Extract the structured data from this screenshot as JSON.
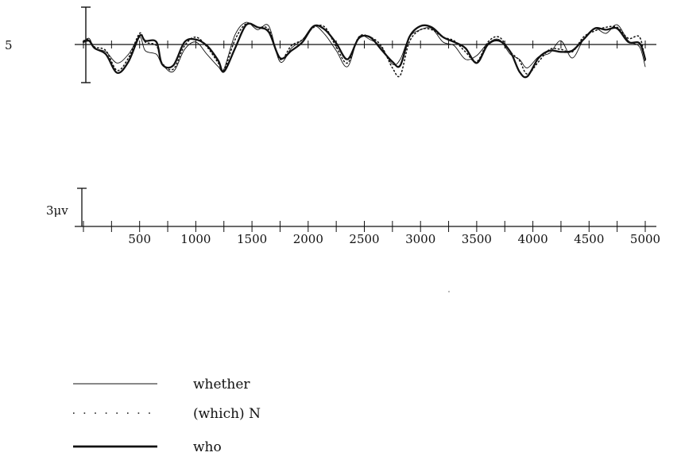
{
  "chart_data": {
    "type": "line",
    "channel_label": "5",
    "scale_label": "3μv",
    "x_tick_labels": [
      "500",
      "1000",
      "1500",
      "2000",
      "2500",
      "3000",
      "3500",
      "4000",
      "4500",
      "5000"
    ],
    "x_ticks": [
      500,
      1000,
      1500,
      2000,
      2500,
      3000,
      3500,
      4000,
      4500,
      5000
    ],
    "xlim": [
      0,
      5000
    ],
    "ylim": [
      -3.5,
      3.5
    ],
    "grid": false,
    "legend_position": "bottom-left",
    "series": [
      {
        "name": "whether",
        "style": "thin-solid",
        "x": [
          0,
          50,
          100,
          200,
          300,
          400,
          500,
          550,
          650,
          700,
          800,
          900,
          1000,
          1100,
          1200,
          1250,
          1350,
          1450,
          1550,
          1650,
          1750,
          1850,
          1950,
          2050,
          2150,
          2250,
          2350,
          2450,
          2550,
          2650,
          2750,
          2820,
          2900,
          3000,
          3100,
          3200,
          3300,
          3400,
          3500,
          3600,
          3700,
          3800,
          3880,
          3950,
          4050,
          4150,
          4250,
          4350,
          4450,
          4550,
          4650,
          4750,
          4850,
          4950,
          5000
        ],
        "y": [
          0.2,
          0.5,
          -0.3,
          -0.6,
          -1.5,
          -0.8,
          0.6,
          -0.5,
          -0.8,
          -1.6,
          -2.2,
          -0.4,
          0.2,
          -0.8,
          -1.8,
          -2.0,
          0.8,
          1.8,
          1.2,
          1.5,
          -1.4,
          -0.3,
          0.4,
          1.5,
          0.8,
          -0.5,
          -1.8,
          0.6,
          0.4,
          -0.2,
          -1.6,
          -1.2,
          0.6,
          1.2,
          1.3,
          0.2,
          -0.1,
          -1.2,
          -0.9,
          0.1,
          0.4,
          -0.8,
          -1.2,
          -1.9,
          -1.0,
          -0.7,
          0.3,
          -1.1,
          0.4,
          1.3,
          0.9,
          1.6,
          0.3,
          -0.2,
          -1.8
        ]
      },
      {
        "name": "(which) N",
        "style": "dotted",
        "x": [
          0,
          50,
          100,
          200,
          300,
          400,
          500,
          550,
          650,
          700,
          800,
          900,
          1000,
          1100,
          1200,
          1250,
          1350,
          1450,
          1550,
          1650,
          1750,
          1850,
          1950,
          2050,
          2150,
          2250,
          2350,
          2450,
          2550,
          2650,
          2750,
          2820,
          2900,
          3000,
          3100,
          3200,
          3300,
          3400,
          3500,
          3600,
          3700,
          3800,
          3880,
          3950,
          4050,
          4150,
          4250,
          4350,
          4450,
          4550,
          4650,
          4750,
          4850,
          4950,
          5000
        ],
        "y": [
          0.3,
          0.4,
          -0.2,
          -0.5,
          -2.1,
          -1.1,
          0.9,
          0.2,
          -0.1,
          -1.5,
          -2.0,
          -0.1,
          0.6,
          -0.2,
          -1.5,
          -2.1,
          0.4,
          1.7,
          1.4,
          1.2,
          -1.2,
          -0.1,
          0.4,
          1.4,
          1.4,
          -0.2,
          -1.5,
          0.6,
          0.6,
          -0.1,
          -1.9,
          -2.5,
          0.2,
          1.2,
          1.2,
          0.6,
          0.3,
          -0.6,
          -1.4,
          0.2,
          0.6,
          -0.6,
          -1.3,
          -2.4,
          -1.4,
          -0.4,
          -0.4,
          -0.6,
          0.6,
          1.1,
          1.4,
          1.4,
          0.5,
          0.6,
          -1.4
        ]
      },
      {
        "name": "who",
        "style": "thick-solid",
        "x": [
          0,
          50,
          100,
          200,
          300,
          400,
          500,
          550,
          650,
          700,
          800,
          900,
          1000,
          1100,
          1200,
          1250,
          1350,
          1450,
          1550,
          1650,
          1750,
          1850,
          1950,
          2050,
          2150,
          2250,
          2350,
          2450,
          2550,
          2650,
          2750,
          2820,
          2900,
          3000,
          3100,
          3200,
          3300,
          3400,
          3500,
          3600,
          3700,
          3800,
          3880,
          3950,
          4050,
          4150,
          4250,
          4350,
          4450,
          4550,
          4650,
          4750,
          4850,
          4950,
          5000
        ],
        "y": [
          0.2,
          0.3,
          -0.3,
          -0.8,
          -2.3,
          -1.4,
          0.7,
          0.3,
          0.2,
          -1.6,
          -1.7,
          0.2,
          0.4,
          -0.1,
          -1.3,
          -2.2,
          -0.3,
          1.6,
          1.4,
          1.0,
          -1.1,
          -0.5,
          0.2,
          1.5,
          1.2,
          0.1,
          -1.2,
          0.5,
          0.6,
          -0.4,
          -1.4,
          -1.7,
          0.6,
          1.5,
          1.4,
          0.6,
          0.2,
          -0.3,
          -1.5,
          0.0,
          0.3,
          -0.6,
          -2.2,
          -2.6,
          -1.1,
          -0.5,
          -0.6,
          -0.5,
          0.4,
          1.3,
          1.2,
          1.3,
          0.2,
          0.1,
          -1.2
        ]
      }
    ]
  }
}
